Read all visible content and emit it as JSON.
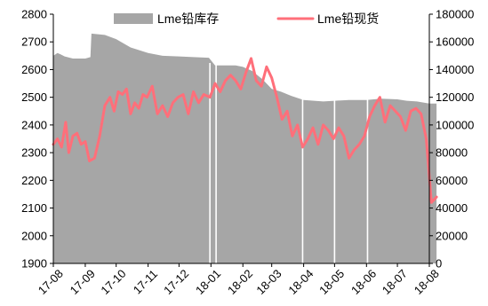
{
  "chart_data": {
    "type": "area",
    "title": "",
    "xlabel": "",
    "ylabel": "",
    "x_ticks": [
      "17-08",
      "17-09",
      "17-10",
      "17-11",
      "17-12",
      "18-01",
      "18-02",
      "18-03",
      "18-04",
      "18-05",
      "18-06",
      "18-07",
      "18-08"
    ],
    "y_left": {
      "min": 1900,
      "max": 2800,
      "ticks": [
        1900,
        2000,
        2100,
        2200,
        2300,
        2400,
        2500,
        2600,
        2700,
        2800
      ]
    },
    "y_right": {
      "min": 0,
      "max": 180000,
      "ticks": [
        0,
        20000,
        40000,
        60000,
        80000,
        100000,
        120000,
        140000,
        160000,
        180000
      ]
    },
    "legend": {
      "placement": "top",
      "items": [
        "Lme铅库存",
        "Lme铅现货"
      ]
    },
    "colors": {
      "inventory": "#a6a6a6",
      "spot": "#ff6f7a",
      "axis": "#000000",
      "gap": "#ffffff"
    },
    "series": [
      {
        "name": "Lme铅库存",
        "type": "area",
        "axis": "right",
        "x": [
          "2017-08-01",
          "2017-08-05",
          "2017-08-08",
          "2017-08-12",
          "2017-08-20",
          "2017-09-01",
          "2017-09-06",
          "2017-09-07",
          "2017-09-20",
          "2017-10-01",
          "2017-10-15",
          "2017-11-01",
          "2017-11-15",
          "2017-12-01",
          "2017-12-15",
          "2017-12-30",
          "2018-01-05",
          "2018-01-15",
          "2018-01-25",
          "2018-02-01",
          "2018-02-10",
          "2018-02-20",
          "2018-03-01",
          "2018-03-10",
          "2018-03-20",
          "2018-04-01",
          "2018-04-20",
          "2018-05-01",
          "2018-05-15",
          "2018-06-01",
          "2018-06-15",
          "2018-07-01",
          "2018-07-10",
          "2018-07-20",
          "2018-08-01",
          "2018-08-08"
        ],
        "values": [
          150000,
          152000,
          151000,
          149500,
          148000,
          148000,
          149000,
          166000,
          165000,
          162000,
          156000,
          152000,
          150000,
          149500,
          149000,
          148500,
          143000,
          143000,
          143000,
          142000,
          139000,
          133000,
          126000,
          124000,
          121000,
          118000,
          117000,
          117500,
          118000,
          118000,
          119000,
          118500,
          117500,
          117000,
          115500,
          115500
        ]
      },
      {
        "name": "Lme铅现货",
        "type": "line",
        "axis": "left",
        "x": [
          "2017-08-01",
          "2017-08-05",
          "2017-08-09",
          "2017-08-13",
          "2017-08-16",
          "2017-08-20",
          "2017-08-24",
          "2017-08-28",
          "2017-09-01",
          "2017-09-05",
          "2017-09-10",
          "2017-09-15",
          "2017-09-20",
          "2017-09-25",
          "2017-09-29",
          "2017-10-03",
          "2017-10-07",
          "2017-10-11",
          "2017-10-15",
          "2017-10-19",
          "2017-10-23",
          "2017-10-27",
          "2017-10-31",
          "2017-11-05",
          "2017-11-10",
          "2017-11-15",
          "2017-11-20",
          "2017-11-25",
          "2017-11-30",
          "2017-12-05",
          "2017-12-10",
          "2017-12-15",
          "2017-12-20",
          "2017-12-25",
          "2017-12-31",
          "2018-01-05",
          "2018-01-10",
          "2018-01-15",
          "2018-01-20",
          "2018-01-25",
          "2018-01-30",
          "2018-02-04",
          "2018-02-09",
          "2018-02-14",
          "2018-02-19",
          "2018-02-24",
          "2018-03-01",
          "2018-03-06",
          "2018-03-11",
          "2018-03-16",
          "2018-03-21",
          "2018-03-26",
          "2018-03-31",
          "2018-04-05",
          "2018-04-10",
          "2018-04-15",
          "2018-04-20",
          "2018-04-25",
          "2018-04-30",
          "2018-05-05",
          "2018-05-10",
          "2018-05-15",
          "2018-05-20",
          "2018-05-25",
          "2018-05-30",
          "2018-06-04",
          "2018-06-09",
          "2018-06-14",
          "2018-06-19",
          "2018-06-24",
          "2018-06-29",
          "2018-07-04",
          "2018-07-09",
          "2018-07-14",
          "2018-07-19",
          "2018-07-24",
          "2018-07-29",
          "2018-08-03",
          "2018-08-08"
        ],
        "values": [
          2330,
          2350,
          2320,
          2410,
          2300,
          2360,
          2370,
          2330,
          2340,
          2270,
          2280,
          2360,
          2470,
          2500,
          2450,
          2520,
          2510,
          2530,
          2440,
          2480,
          2460,
          2510,
          2500,
          2540,
          2440,
          2470,
          2430,
          2480,
          2500,
          2510,
          2440,
          2520,
          2480,
          2510,
          2500,
          2550,
          2520,
          2560,
          2580,
          2560,
          2530,
          2590,
          2640,
          2560,
          2540,
          2610,
          2570,
          2500,
          2420,
          2450,
          2360,
          2400,
          2320,
          2350,
          2390,
          2330,
          2400,
          2380,
          2350,
          2390,
          2360,
          2280,
          2310,
          2330,
          2360,
          2430,
          2470,
          2500,
          2410,
          2470,
          2450,
          2430,
          2380,
          2450,
          2460,
          2440,
          2350,
          2120,
          2140
        ]
      }
    ]
  }
}
